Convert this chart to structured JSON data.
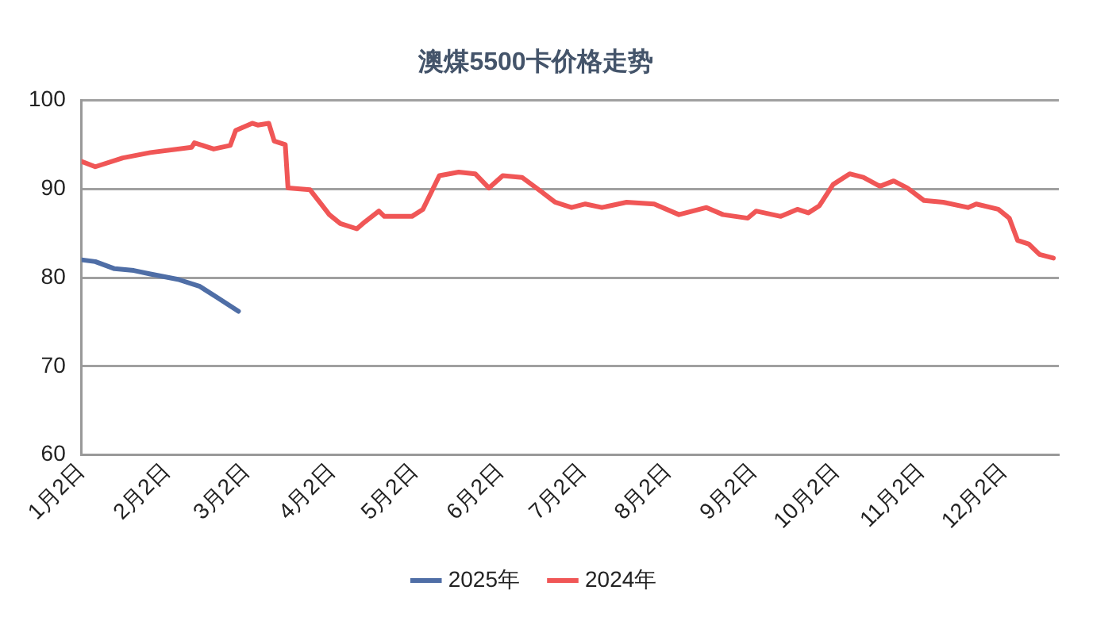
{
  "chart_data": {
    "type": "line",
    "title": "澳煤5500卡价格走势",
    "xlim": [
      "--01-02",
      "--12-22"
    ],
    "xticks": [
      {
        "value": "--01-02",
        "label": "1月2日"
      },
      {
        "value": "--02-02",
        "label": "2月2日"
      },
      {
        "value": "--03-02",
        "label": "3月2日"
      },
      {
        "value": "--04-02",
        "label": "4月2日"
      },
      {
        "value": "--05-02",
        "label": "5月2日"
      },
      {
        "value": "--06-02",
        "label": "6月2日"
      },
      {
        "value": "--07-02",
        "label": "7月2日"
      },
      {
        "value": "--08-02",
        "label": "8月2日"
      },
      {
        "value": "--09-02",
        "label": "9月2日"
      },
      {
        "value": "--10-02",
        "label": "10月2日"
      },
      {
        "value": "--11-02",
        "label": "11月2日"
      },
      {
        "value": "--12-02",
        "label": "12月2日"
      }
    ],
    "ylim": [
      60,
      100
    ],
    "yticks": [
      60,
      70,
      80,
      90,
      100
    ],
    "grid": "y",
    "legend": "bottom",
    "marker": "none",
    "line_style": "solid",
    "series": [
      {
        "name": "2025年",
        "color": "#4f6ea6",
        "x": [
          "--01-02",
          "--01-07",
          "--01-14",
          "--01-21",
          "--01-27",
          "--02-06",
          "--02-14",
          "--02-20",
          "--02-28"
        ],
        "values": [
          82.0,
          81.8,
          81.0,
          80.8,
          80.4,
          79.8,
          79.0,
          77.8,
          76.2
        ]
      },
      {
        "name": "2024年",
        "color": "#f05656",
        "x": [
          "--01-02",
          "--01-07",
          "--01-17",
          "--01-27",
          "--02-11",
          "--02-12",
          "--02-19",
          "--02-25",
          "--02-27",
          "--03-04",
          "--03-06",
          "--03-10",
          "--03-12",
          "--03-16",
          "--03-17",
          "--03-25",
          "--03-29",
          "--04-01",
          "--04-05",
          "--04-11",
          "--04-14",
          "--04-19",
          "--04-21",
          "--05-01",
          "--05-05",
          "--05-11",
          "--05-18",
          "--05-24",
          "--05-29",
          "--06-03",
          "--06-10",
          "--06-17",
          "--06-22",
          "--06-28",
          "--07-03",
          "--07-09",
          "--07-18",
          "--07-28",
          "--08-06",
          "--08-16",
          "--08-22",
          "--08-31",
          "--09-03",
          "--09-12",
          "--09-18",
          "--09-22",
          "--09-26",
          "--10-01",
          "--10-07",
          "--10-12",
          "--10-18",
          "--10-23",
          "--10-28",
          "--11-03",
          "--11-10",
          "--11-19",
          "--11-22",
          "--11-30",
          "--12-04",
          "--12-07",
          "--12-11",
          "--12-15",
          "--12-20"
        ],
        "values": [
          93.1,
          92.5,
          93.5,
          94.1,
          94.7,
          95.2,
          94.5,
          94.9,
          96.6,
          97.4,
          97.2,
          97.4,
          95.4,
          95.0,
          90.1,
          89.9,
          88.3,
          87.1,
          86.1,
          85.5,
          86.3,
          87.5,
          86.9,
          86.9,
          87.7,
          91.5,
          91.9,
          91.7,
          90.1,
          91.5,
          91.3,
          89.7,
          88.5,
          87.9,
          88.3,
          87.9,
          88.5,
          88.3,
          87.1,
          87.9,
          87.1,
          86.7,
          87.5,
          86.9,
          87.7,
          87.3,
          88.1,
          90.5,
          91.7,
          91.3,
          90.3,
          90.9,
          90.1,
          88.7,
          88.5,
          87.9,
          88.3,
          87.7,
          86.7,
          84.2,
          83.8,
          82.6,
          82.2
        ]
      }
    ]
  }
}
